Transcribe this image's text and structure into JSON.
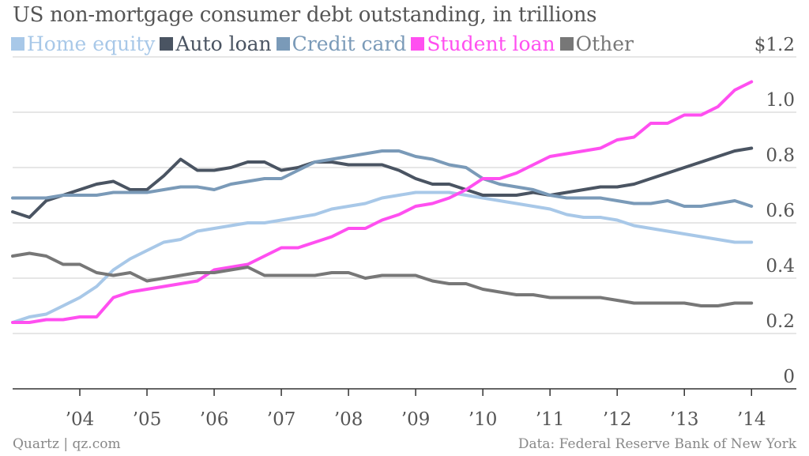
{
  "title": "US non-mortgage consumer debt outstanding, in trillions",
  "source_left": "Quartz | qz.com",
  "source_right": "Data: Federal Reserve Bank of New York",
  "chart_data": {
    "type": "line",
    "title": "US non-mortgage consumer debt outstanding, in trillions",
    "xlabel": "",
    "ylabel": "",
    "xlim": [
      2003.0,
      2014.15
    ],
    "ylim": [
      0,
      1.2
    ],
    "grid": true,
    "legend": "top-left",
    "y_ticks": [
      {
        "v": 1.2,
        "label": "$1.2"
      },
      {
        "v": 1.0,
        "label": "1.0"
      },
      {
        "v": 0.8,
        "label": "0.8"
      },
      {
        "v": 0.6,
        "label": "0.6"
      },
      {
        "v": 0.4,
        "label": "0.4"
      },
      {
        "v": 0.2,
        "label": "0.2"
      },
      {
        "v": 0,
        "label": "0"
      }
    ],
    "x_ticks": [
      {
        "v": 2004,
        "label": "’04"
      },
      {
        "v": 2005,
        "label": "’05"
      },
      {
        "v": 2006,
        "label": "’06"
      },
      {
        "v": 2007,
        "label": "’07"
      },
      {
        "v": 2008,
        "label": "’08"
      },
      {
        "v": 2009,
        "label": "’09"
      },
      {
        "v": 2010,
        "label": "’10"
      },
      {
        "v": 2011,
        "label": "’11"
      },
      {
        "v": 2012,
        "label": "’12"
      },
      {
        "v": 2013,
        "label": "’13"
      },
      {
        "v": 2014,
        "label": "’14"
      }
    ],
    "x": [
      2003.0,
      2003.25,
      2003.5,
      2003.75,
      2004.0,
      2004.25,
      2004.5,
      2004.75,
      2005.0,
      2005.25,
      2005.5,
      2005.75,
      2006.0,
      2006.25,
      2006.5,
      2006.75,
      2007.0,
      2007.25,
      2007.5,
      2007.75,
      2008.0,
      2008.25,
      2008.5,
      2008.75,
      2009.0,
      2009.25,
      2009.5,
      2009.75,
      2010.0,
      2010.25,
      2010.5,
      2010.75,
      2011.0,
      2011.25,
      2011.5,
      2011.75,
      2012.0,
      2012.25,
      2012.5,
      2012.75,
      2013.0,
      2013.25,
      2013.5,
      2013.75,
      2014.0
    ],
    "series": [
      {
        "name": "Home equity",
        "color": "#a8c8e8",
        "values": [
          0.24,
          0.26,
          0.27,
          0.3,
          0.33,
          0.37,
          0.43,
          0.47,
          0.5,
          0.53,
          0.54,
          0.57,
          0.58,
          0.59,
          0.6,
          0.6,
          0.61,
          0.62,
          0.63,
          0.65,
          0.66,
          0.67,
          0.69,
          0.7,
          0.71,
          0.71,
          0.71,
          0.7,
          0.69,
          0.68,
          0.67,
          0.66,
          0.65,
          0.63,
          0.62,
          0.62,
          0.61,
          0.59,
          0.58,
          0.57,
          0.56,
          0.55,
          0.54,
          0.53,
          0.53
        ]
      },
      {
        "name": "Auto loan",
        "color": "#4a5462",
        "values": [
          0.64,
          0.62,
          0.68,
          0.7,
          0.72,
          0.74,
          0.75,
          0.72,
          0.72,
          0.77,
          0.83,
          0.79,
          0.79,
          0.8,
          0.82,
          0.82,
          0.79,
          0.8,
          0.82,
          0.82,
          0.81,
          0.81,
          0.81,
          0.79,
          0.76,
          0.74,
          0.74,
          0.72,
          0.7,
          0.7,
          0.7,
          0.71,
          0.7,
          0.71,
          0.72,
          0.73,
          0.73,
          0.74,
          0.76,
          0.78,
          0.8,
          0.82,
          0.84,
          0.86,
          0.87
        ]
      },
      {
        "name": "Credit card",
        "color": "#7a9ab8",
        "values": [
          0.69,
          0.69,
          0.69,
          0.7,
          0.7,
          0.7,
          0.71,
          0.71,
          0.71,
          0.72,
          0.73,
          0.73,
          0.72,
          0.74,
          0.75,
          0.76,
          0.76,
          0.79,
          0.82,
          0.83,
          0.84,
          0.85,
          0.86,
          0.86,
          0.84,
          0.83,
          0.81,
          0.8,
          0.76,
          0.74,
          0.73,
          0.72,
          0.7,
          0.69,
          0.69,
          0.69,
          0.68,
          0.67,
          0.67,
          0.68,
          0.66,
          0.66,
          0.67,
          0.68,
          0.66
        ]
      },
      {
        "name": "Student loan",
        "color": "#ff4ff0",
        "values": [
          0.24,
          0.24,
          0.25,
          0.25,
          0.26,
          0.26,
          0.33,
          0.35,
          0.36,
          0.37,
          0.38,
          0.39,
          0.43,
          0.44,
          0.45,
          0.48,
          0.51,
          0.51,
          0.53,
          0.55,
          0.58,
          0.58,
          0.61,
          0.63,
          0.66,
          0.67,
          0.69,
          0.72,
          0.76,
          0.76,
          0.78,
          0.81,
          0.84,
          0.85,
          0.86,
          0.87,
          0.9,
          0.91,
          0.96,
          0.96,
          0.99,
          0.99,
          1.02,
          1.08,
          1.11
        ]
      },
      {
        "name": "Other",
        "color": "#777777",
        "values": [
          0.48,
          0.49,
          0.48,
          0.45,
          0.45,
          0.42,
          0.41,
          0.42,
          0.39,
          0.4,
          0.41,
          0.42,
          0.42,
          0.43,
          0.44,
          0.41,
          0.41,
          0.41,
          0.41,
          0.42,
          0.42,
          0.4,
          0.41,
          0.41,
          0.41,
          0.39,
          0.38,
          0.38,
          0.36,
          0.35,
          0.34,
          0.34,
          0.33,
          0.33,
          0.33,
          0.33,
          0.32,
          0.31,
          0.31,
          0.31,
          0.31,
          0.3,
          0.3,
          0.31,
          0.31
        ]
      }
    ]
  }
}
